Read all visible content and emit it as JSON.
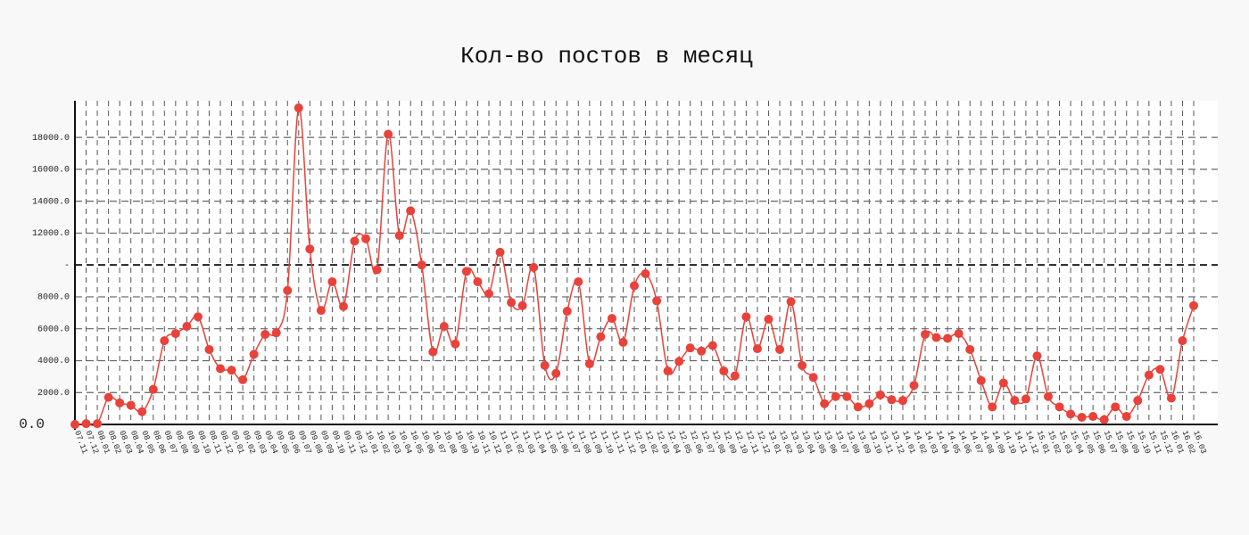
{
  "chart_data": {
    "type": "line",
    "title": "Кол-во постов в месяц",
    "categories": [
      "07.11",
      "07.12",
      "08.01",
      "08.02",
      "08.03",
      "08.04",
      "08.05",
      "08.06",
      "08.07",
      "08.08",
      "08.09",
      "08.10",
      "08.11",
      "08.12",
      "09.01",
      "09.02",
      "09.03",
      "09.04",
      "09.05",
      "09.06",
      "09.07",
      "09.08",
      "09.09",
      "09.10",
      "09.11",
      "09.12",
      "10.01",
      "10.02",
      "10.03",
      "10.04",
      "10.05",
      "10.06",
      "10.07",
      "10.08",
      "10.09",
      "10.10",
      "10.11",
      "10.12",
      "11.01",
      "11.02",
      "11.03",
      "11.04",
      "11.05",
      "11.06",
      "11.07",
      "11.08",
      "11.09",
      "11.10",
      "11.11",
      "11.12",
      "12.01",
      "12.02",
      "12.03",
      "12.04",
      "12.05",
      "12.06",
      "12.07",
      "12.08",
      "12.09",
      "12.10",
      "12.11",
      "12.12",
      "13.01",
      "13.02",
      "13.03",
      "13.04",
      "13.05",
      "13.06",
      "13.07",
      "13.08",
      "13.09",
      "13.10",
      "13.11",
      "13.12",
      "14.01",
      "14.02",
      "14.03",
      "14.04",
      "14.05",
      "14.06",
      "14.07",
      "14.08",
      "14.09",
      "14.10",
      "14.11",
      "14.12",
      "15.01",
      "15.02",
      "15.03",
      "15.04",
      "15.05",
      "15.06",
      "15.07",
      "15.08",
      "15.09",
      "15.10",
      "15.11",
      "15.12",
      "16.01",
      "16.02",
      "16.03"
    ],
    "values": [
      0,
      50,
      50,
      1700,
      1350,
      1200,
      800,
      2200,
      5250,
      5700,
      6150,
      6750,
      4700,
      3500,
      3400,
      2800,
      4400,
      5650,
      5750,
      8400,
      19850,
      11000,
      7150,
      8950,
      7400,
      11500,
      11650,
      9700,
      18200,
      11850,
      13400,
      10000,
      4550,
      6150,
      5050,
      9600,
      8950,
      8200,
      10800,
      7650,
      7450,
      9850,
      3700,
      3200,
      7100,
      8950,
      3800,
      5500,
      6650,
      5150,
      8700,
      9450,
      7750,
      3350,
      3950,
      4800,
      4600,
      4950,
      3350,
      3050,
      6750,
      4750,
      6600,
      4700,
      7700,
      3700,
      2950,
      1300,
      1750,
      1750,
      1100,
      1300,
      1850,
      1550,
      1500,
      2450,
      5650,
      5450,
      5400,
      5700,
      4700,
      2750,
      1100,
      2600,
      1500,
      1600,
      4300,
      1750,
      1100,
      650,
      450,
      500,
      300,
      1100,
      500,
      1500,
      3100,
      3450,
      1650,
      5250,
      7450
    ],
    "color": "#e8423a",
    "ylim": [
      0,
      20300
    ],
    "yticks": [
      {
        "value": 0,
        "label": "0.0"
      },
      {
        "value": 2000,
        "label": "2000.0"
      },
      {
        "value": 4000,
        "label": "4000.0"
      },
      {
        "value": 6000,
        "label": "6000.0"
      },
      {
        "value": 8000,
        "label": "8000.0"
      },
      {
        "value": 10000,
        "label": "-"
      },
      {
        "value": 12000,
        "label": "12000.0"
      },
      {
        "value": 14000,
        "label": "14000.0"
      },
      {
        "value": 16000,
        "label": "16000.0"
      },
      {
        "value": 18000,
        "label": "18000.0"
      }
    ],
    "grid": true
  }
}
